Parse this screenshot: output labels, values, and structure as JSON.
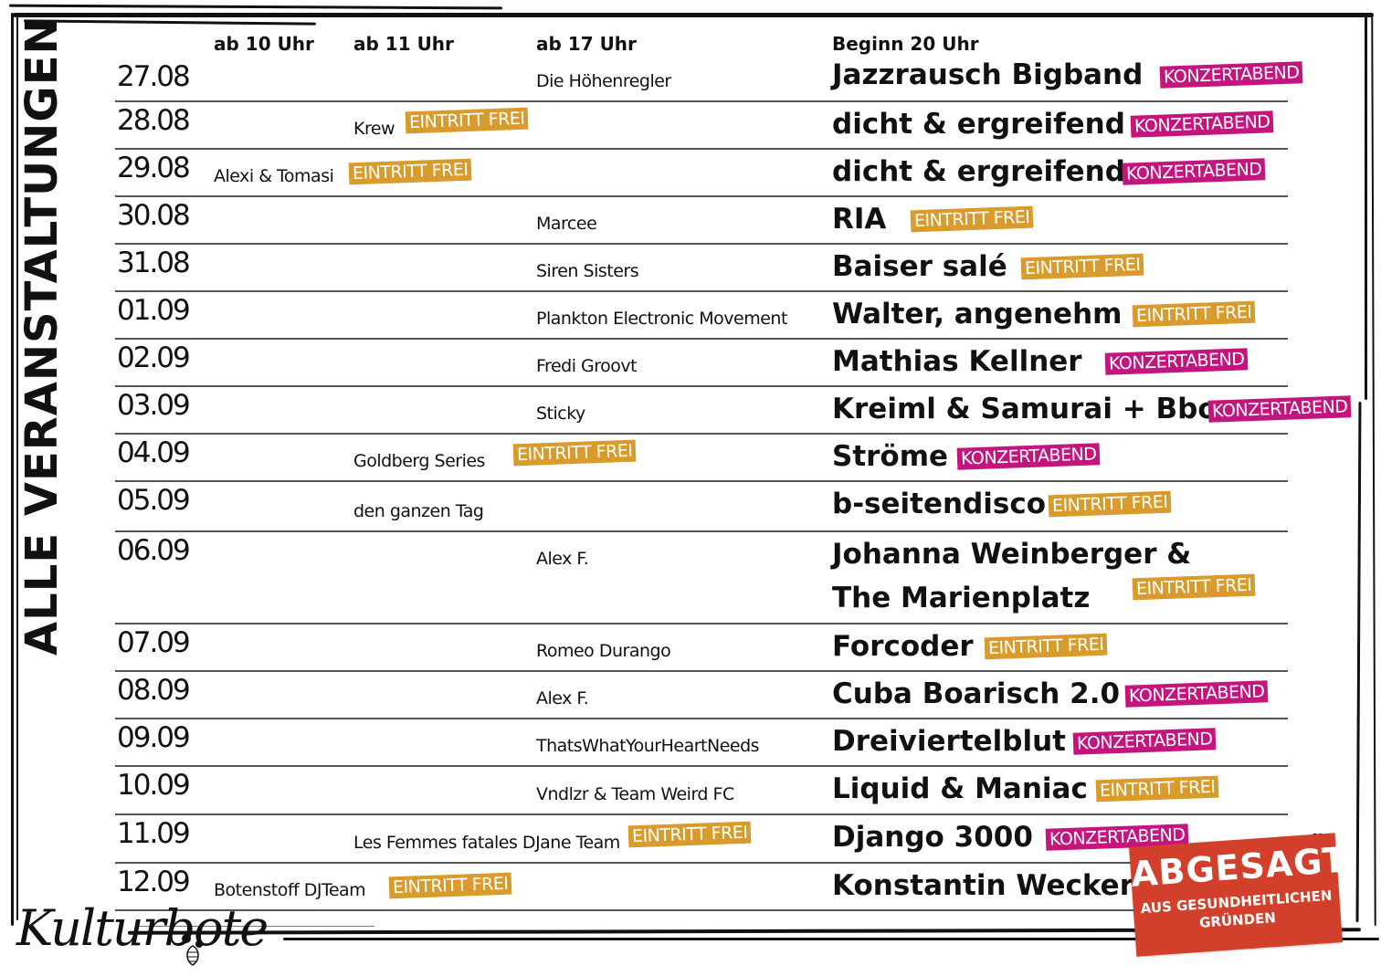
{
  "title": "ALLE VERANSTALTUNGEN",
  "columns": {
    "col1": "ab 10 Uhr",
    "col2": "ab 11 Uhr",
    "col3": "ab 17 Uhr",
    "col4": "Beginn 20 Uhr"
  },
  "badges": {
    "free": "EINTRITT FREI",
    "konzert": "KONZERTABEND"
  },
  "colors": {
    "free": "#d99b2b",
    "konzert": "#c4157f",
    "cancelled": "#d2402c"
  },
  "rows": [
    {
      "date": "27.08",
      "ab10": "",
      "ab11": "",
      "ab17": "Die Höhenregler",
      "headliner": "Jazzrausch Bigband",
      "headliner_badge": "KONZERTABEND"
    },
    {
      "date": "28.08",
      "ab10": "",
      "ab11": "Krew",
      "ab11_badge": "EINTRITT FREI",
      "ab17": "",
      "headliner": "dicht & ergreifend",
      "headliner_badge": "KONZERTABEND"
    },
    {
      "date": "29.08",
      "ab10": "Alexi & Tomasi",
      "ab10_badge": "EINTRITT FREI",
      "ab11": "",
      "ab17": "",
      "headliner": "dicht & ergreifend",
      "headliner_badge": "KONZERTABEND"
    },
    {
      "date": "30.08",
      "ab10": "",
      "ab11": "",
      "ab17": "Marcee",
      "headliner": "RIA",
      "headliner_badge": "EINTRITT FREI"
    },
    {
      "date": "31.08",
      "ab10": "",
      "ab11": "",
      "ab17": "Siren Sisters",
      "headliner": "Baiser salé",
      "headliner_badge": "EINTRITT FREI"
    },
    {
      "date": "01.09",
      "ab10": "",
      "ab11": "",
      "ab17": "Plankton Electronic Movement",
      "headliner": "Walter, angenehm",
      "headliner_badge": "EINTRITT FREI"
    },
    {
      "date": "02.09",
      "ab10": "",
      "ab11": "",
      "ab17": "Fredi Groovt",
      "headliner": "Mathias Kellner",
      "headliner_badge": "KONZERTABEND"
    },
    {
      "date": "03.09",
      "ab10": "",
      "ab11": "",
      "ab17": "Sticky",
      "headliner": "Kreiml & Samurai + Bbou",
      "headliner_badge": "KONZERTABEND"
    },
    {
      "date": "04.09",
      "ab10": "",
      "ab11": "Goldberg Series",
      "ab11_badge": "EINTRITT FREI",
      "ab17": "",
      "headliner": "Ströme",
      "headliner_badge": "KONZERTABEND"
    },
    {
      "date": "05.09",
      "ab10": "",
      "ab11": "den ganzen Tag",
      "ab17": "",
      "headliner": "b-seitendisco",
      "headliner_badge": "EINTRITT FREI"
    },
    {
      "date": "06.09",
      "ab10": "",
      "ab11": "",
      "ab17": "Alex F.",
      "headliner": "Johanna Weinberger &",
      "headliner_line2": "The Marienplatz",
      "headliner_badge": "EINTRITT FREI"
    },
    {
      "date": "07.09",
      "ab10": "",
      "ab11": "",
      "ab17": "Romeo Durango",
      "headliner": "Forcoder",
      "headliner_badge": "EINTRITT FREI"
    },
    {
      "date": "08.09",
      "ab10": "",
      "ab11": "",
      "ab17": "Alex F.",
      "headliner": "Cuba Boarisch 2.0",
      "headliner_badge": "KONZERTABEND"
    },
    {
      "date": "09.09",
      "ab10": "",
      "ab11": "",
      "ab17": "ThatsWhatYourHeartNeeds",
      "headliner": "Dreiviertelblut",
      "headliner_badge": "KONZERTABEND"
    },
    {
      "date": "10.09",
      "ab10": "",
      "ab11": "",
      "ab17": "Vndlzr & Team Weird FC",
      "headliner": "Liquid & Maniac",
      "headliner_badge": "EINTRITT FREI"
    },
    {
      "date": "11.09",
      "ab10": "",
      "ab11": "Les Femmes fatales DJane Team",
      "ab11_badge": "EINTRITT FREI",
      "ab17": "",
      "headliner": "Django 3000",
      "headliner_badge": "KONZERTABEND"
    },
    {
      "date": "12.09",
      "ab10": "Botenstoff DJTeam",
      "ab10_badge": "EINTRITT FREI",
      "ab11": "",
      "ab17": "",
      "headliner": "Konstantin Wecker",
      "headliner_status": "cancelled"
    }
  ],
  "cancelled_sticker": {
    "headline": "ABGESAGT",
    "line1": "AUS GESUNDHEITLICHEN",
    "line2": "GRÜNDEN"
  },
  "logo": {
    "text": "Kulturbote"
  }
}
